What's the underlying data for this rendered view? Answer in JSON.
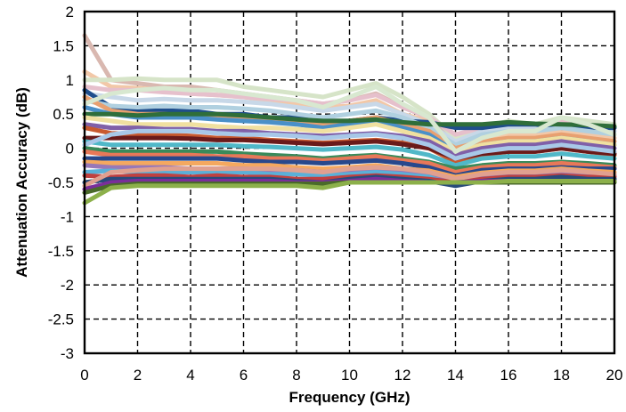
{
  "chart_data": {
    "type": "line",
    "xlabel": "Frequency (GHz)",
    "ylabel": "Attenuation Accuracy (dB)",
    "xlim": [
      0,
      20
    ],
    "ylim": [
      -3,
      2
    ],
    "x_ticks": [
      0,
      2,
      4,
      6,
      8,
      10,
      12,
      14,
      16,
      18,
      20
    ],
    "y_ticks": [
      2,
      1.5,
      1,
      0.5,
      0,
      -0.5,
      -1,
      -1.5,
      -2,
      -2.5,
      -3
    ],
    "y_tick_labels": [
      "2",
      "1.5",
      "1",
      "0.5",
      "0",
      "-0.5",
      "-1",
      "-1.5",
      "-2",
      "-2.5",
      "-3"
    ],
    "grid": true,
    "x": [
      0,
      1,
      2,
      3,
      4,
      5,
      6,
      7,
      8,
      9,
      10,
      11,
      12,
      13,
      14,
      15,
      16,
      17,
      18,
      19,
      20
    ],
    "series": [
      {
        "color": "#d9b8b0",
        "values": [
          1.65,
          1.0,
          0.95,
          0.9,
          0.9,
          0.85,
          0.8,
          0.75,
          0.7,
          0.65,
          0.7,
          0.8,
          0.6,
          0.45,
          0.1,
          0.2,
          0.25,
          0.2,
          0.3,
          0.25,
          0.2
        ]
      },
      {
        "color": "#f2c8a8",
        "values": [
          1.12,
          0.9,
          0.88,
          0.85,
          0.8,
          0.78,
          0.75,
          0.7,
          0.65,
          0.6,
          0.62,
          0.7,
          0.5,
          0.4,
          0.0,
          0.15,
          0.2,
          0.2,
          0.25,
          0.2,
          0.15
        ]
      },
      {
        "color": "#d6e4c8",
        "values": [
          1.0,
          1.0,
          1.02,
          1.0,
          1.0,
          1.0,
          0.9,
          0.85,
          0.8,
          0.75,
          0.85,
          0.95,
          0.75,
          0.5,
          0.15,
          0.3,
          0.4,
          0.35,
          0.45,
          0.4,
          0.35
        ]
      },
      {
        "color": "#e6c0cc",
        "values": [
          0.9,
          0.85,
          0.85,
          0.82,
          0.8,
          0.78,
          0.75,
          0.72,
          0.7,
          0.65,
          0.7,
          0.78,
          0.6,
          0.45,
          0.2,
          0.3,
          0.35,
          0.3,
          0.4,
          0.3,
          0.3
        ]
      },
      {
        "color": "#c8d8e8",
        "values": [
          0.8,
          0.75,
          0.7,
          0.72,
          0.7,
          0.7,
          0.68,
          0.65,
          0.6,
          0.55,
          0.6,
          0.65,
          0.5,
          0.35,
          0.1,
          0.25,
          0.3,
          0.3,
          0.35,
          0.3,
          0.25
        ]
      },
      {
        "color": "#1f4e8c",
        "values": [
          0.85,
          0.6,
          0.55,
          0.55,
          0.55,
          0.5,
          0.5,
          0.45,
          0.45,
          0.4,
          0.4,
          0.45,
          0.4,
          0.38,
          0.3,
          0.3,
          0.35,
          0.35,
          0.3,
          0.3,
          0.3
        ]
      },
      {
        "color": "#b0d0e0",
        "values": [
          0.7,
          0.62,
          0.6,
          0.62,
          0.6,
          0.6,
          0.58,
          0.55,
          0.5,
          0.45,
          0.5,
          0.55,
          0.45,
          0.3,
          0.05,
          0.2,
          0.25,
          0.25,
          0.3,
          0.25,
          0.2
        ]
      },
      {
        "color": "#e8a070",
        "values": [
          0.75,
          0.55,
          0.5,
          0.5,
          0.48,
          0.45,
          0.45,
          0.42,
          0.4,
          0.35,
          0.4,
          0.45,
          0.35,
          0.25,
          0.0,
          0.1,
          0.15,
          0.15,
          0.2,
          0.15,
          0.1
        ]
      },
      {
        "color": "#4a90c8",
        "values": [
          0.6,
          0.5,
          0.45,
          0.45,
          0.45,
          0.42,
          0.4,
          0.38,
          0.35,
          0.3,
          0.35,
          0.4,
          0.3,
          0.2,
          -0.05,
          0.05,
          0.1,
          0.1,
          0.15,
          0.1,
          0.05
        ]
      },
      {
        "color": "#2f6e3a",
        "values": [
          0.5,
          0.5,
          0.48,
          0.5,
          0.5,
          0.5,
          0.48,
          0.45,
          0.42,
          0.4,
          0.4,
          0.42,
          0.38,
          0.35,
          0.35,
          0.35,
          0.38,
          0.36,
          0.35,
          0.34,
          0.32
        ]
      },
      {
        "color": "#f0e0a0",
        "values": [
          0.45,
          0.4,
          0.35,
          0.35,
          0.35,
          0.32,
          0.3,
          0.3,
          0.28,
          0.25,
          0.3,
          0.35,
          0.25,
          0.15,
          -0.05,
          0.05,
          0.1,
          0.1,
          0.15,
          0.1,
          0.05
        ]
      },
      {
        "color": "#8060a8",
        "values": [
          0.35,
          0.3,
          0.3,
          0.28,
          0.28,
          0.25,
          0.25,
          0.22,
          0.2,
          0.18,
          0.2,
          0.22,
          0.18,
          0.1,
          -0.1,
          0.0,
          0.05,
          0.05,
          0.1,
          0.05,
          0.0
        ]
      },
      {
        "color": "#c85a30",
        "values": [
          0.3,
          0.22,
          0.2,
          0.2,
          0.18,
          0.15,
          0.15,
          0.12,
          0.1,
          0.08,
          0.1,
          0.12,
          0.08,
          0.0,
          -0.2,
          -0.1,
          -0.05,
          -0.05,
          0.0,
          -0.05,
          -0.1
        ]
      },
      {
        "color": "#6a1a1a",
        "values": [
          0.15,
          0.15,
          0.15,
          0.15,
          0.14,
          0.12,
          0.12,
          0.1,
          0.08,
          0.06,
          0.08,
          0.1,
          0.06,
          0.0,
          -0.15,
          -0.08,
          -0.05,
          -0.05,
          0.0,
          -0.05,
          -0.08
        ]
      },
      {
        "color": "#50b8c8",
        "values": [
          0.1,
          0.05,
          0.05,
          0.05,
          0.05,
          0.05,
          0.03,
          0.02,
          0.0,
          -0.02,
          0.0,
          0.02,
          -0.02,
          -0.1,
          -0.25,
          -0.15,
          -0.12,
          -0.12,
          -0.08,
          -0.12,
          -0.15
        ]
      },
      {
        "color": "#a8c8e8",
        "values": [
          0.05,
          0.2,
          0.25,
          0.25,
          0.25,
          0.22,
          0.2,
          0.2,
          0.18,
          0.15,
          0.18,
          0.2,
          0.15,
          0.05,
          -0.15,
          -0.05,
          0.0,
          0.0,
          0.05,
          0.0,
          -0.05
        ]
      },
      {
        "color": "#3a8a5a",
        "values": [
          0.0,
          -0.05,
          -0.05,
          -0.05,
          -0.05,
          -0.05,
          -0.08,
          -0.1,
          -0.12,
          -0.15,
          -0.12,
          -0.1,
          -0.15,
          -0.2,
          -0.3,
          -0.25,
          -0.22,
          -0.22,
          -0.2,
          -0.22,
          -0.25
        ]
      },
      {
        "color": "#e87858",
        "values": [
          -0.05,
          -0.1,
          -0.1,
          -0.1,
          -0.1,
          -0.12,
          -0.12,
          -0.15,
          -0.15,
          -0.18,
          -0.15,
          -0.12,
          -0.18,
          -0.22,
          -0.35,
          -0.28,
          -0.25,
          -0.25,
          -0.22,
          -0.25,
          -0.28
        ]
      },
      {
        "color": "#28488c",
        "values": [
          -0.15,
          -0.15,
          -0.15,
          -0.15,
          -0.15,
          -0.15,
          -0.18,
          -0.2,
          -0.2,
          -0.22,
          -0.2,
          -0.18,
          -0.22,
          -0.28,
          -0.4,
          -0.32,
          -0.3,
          -0.3,
          -0.28,
          -0.3,
          -0.3
        ]
      },
      {
        "color": "#f4a860",
        "values": [
          -0.2,
          -0.22,
          -0.22,
          -0.22,
          -0.22,
          -0.22,
          -0.25,
          -0.25,
          -0.28,
          -0.3,
          -0.28,
          -0.25,
          -0.3,
          -0.33,
          -0.42,
          -0.36,
          -0.33,
          -0.33,
          -0.3,
          -0.33,
          -0.35
        ]
      },
      {
        "color": "#9878b8",
        "values": [
          -0.25,
          -0.28,
          -0.28,
          -0.28,
          -0.3,
          -0.3,
          -0.3,
          -0.32,
          -0.32,
          -0.35,
          -0.32,
          -0.3,
          -0.33,
          -0.38,
          -0.45,
          -0.4,
          -0.38,
          -0.38,
          -0.35,
          -0.38,
          -0.4
        ]
      },
      {
        "color": "#5ab0d8",
        "values": [
          -0.35,
          -0.33,
          -0.35,
          -0.35,
          -0.35,
          -0.35,
          -0.35,
          -0.38,
          -0.38,
          -0.4,
          -0.38,
          -0.35,
          -0.38,
          -0.42,
          -0.55,
          -0.45,
          -0.42,
          -0.42,
          -0.4,
          -0.42,
          -0.45
        ]
      },
      {
        "color": "#c04040",
        "values": [
          -0.4,
          -0.42,
          -0.4,
          -0.4,
          -0.42,
          -0.4,
          -0.42,
          -0.42,
          -0.45,
          -0.45,
          -0.42,
          -0.4,
          -0.42,
          -0.45,
          -0.5,
          -0.45,
          -0.42,
          -0.42,
          -0.4,
          -0.42,
          -0.42
        ]
      },
      {
        "color": "#284a7a",
        "values": [
          -0.5,
          -0.45,
          -0.45,
          -0.45,
          -0.45,
          -0.45,
          -0.45,
          -0.45,
          -0.48,
          -0.5,
          -0.45,
          -0.42,
          -0.45,
          -0.48,
          -0.55,
          -0.48,
          -0.45,
          -0.45,
          -0.42,
          -0.45,
          -0.45
        ]
      },
      {
        "color": "#e0a090",
        "values": [
          -0.55,
          -0.35,
          -0.32,
          -0.3,
          -0.3,
          -0.3,
          -0.3,
          -0.3,
          -0.32,
          -0.35,
          -0.3,
          -0.28,
          -0.3,
          -0.35,
          -0.45,
          -0.38,
          -0.35,
          -0.35,
          -0.32,
          -0.35,
          -0.38
        ]
      },
      {
        "color": "#7a2e9a",
        "values": [
          -0.6,
          -0.5,
          -0.48,
          -0.48,
          -0.48,
          -0.48,
          -0.48,
          -0.48,
          -0.5,
          -0.5,
          -0.48,
          -0.45,
          -0.48,
          -0.5,
          -0.5,
          -0.48,
          -0.48,
          -0.48,
          -0.48,
          -0.48,
          -0.48
        ]
      },
      {
        "color": "#4a6a2a",
        "values": [
          -0.65,
          -0.55,
          -0.52,
          -0.52,
          -0.52,
          -0.52,
          -0.52,
          -0.52,
          -0.52,
          -0.52,
          -0.5,
          -0.5,
          -0.5,
          -0.5,
          -0.5,
          -0.5,
          -0.5,
          -0.5,
          -0.5,
          -0.5,
          -0.5
        ]
      },
      {
        "color": "#8cb04a",
        "values": [
          -0.8,
          -0.58,
          -0.55,
          -0.55,
          -0.55,
          -0.55,
          -0.55,
          -0.55,
          -0.55,
          -0.58,
          -0.5,
          -0.5,
          -0.5,
          -0.5,
          -0.5,
          -0.5,
          -0.48,
          -0.48,
          -0.48,
          -0.48,
          -0.48
        ]
      },
      {
        "color": "#d8e8d0",
        "values": [
          0.65,
          0.8,
          0.85,
          0.88,
          0.85,
          0.85,
          0.8,
          0.75,
          0.7,
          0.6,
          0.75,
          0.9,
          0.65,
          0.45,
          -0.05,
          0.15,
          0.25,
          0.25,
          0.45,
          0.35,
          0.2
        ]
      }
    ]
  }
}
